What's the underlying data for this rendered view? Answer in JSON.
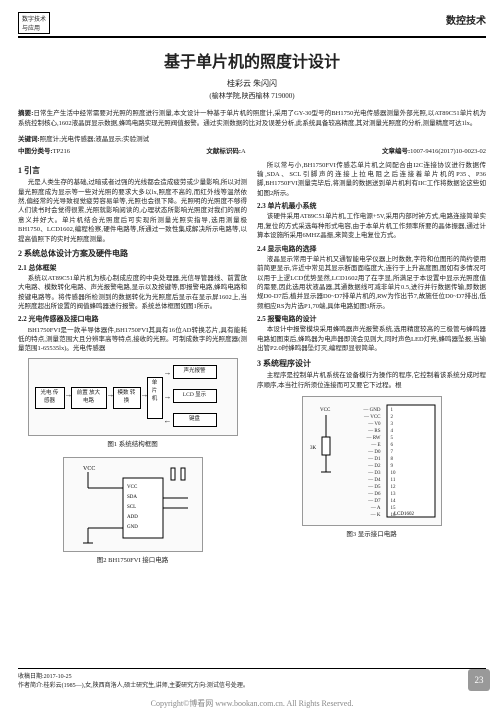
{
  "header": {
    "left_top": "数字技术",
    "left_bottom": "与应用",
    "right": "数控技术"
  },
  "title": "基于单片机的照度计设计",
  "authors": "桂彩云 朱闪闪",
  "affiliation": "(榆林学院,陕西榆林  719000)",
  "abstract_label": "摘要:",
  "abstract": "日常生产生活中经常需要对光照的照度进行测量,本文设计一种基于单片机的照度计,采用了GY-30型号的BH1750光电传感器测量外部光照,以AT89C51单片机为系统控制核心,1602液晶屏显示数据,蜂鸣电路实现光照阀值报警。通过实测数据的比对及误差分析,此系统具备较高精度,其对测量光照度的分析,测量精度可达1lx。",
  "keywords_label": "关键词:",
  "keywords": "照度计;光电传感器;液晶显示;实验测试",
  "clc_label": "中图分类号:",
  "clc": "TP216",
  "doc_code_label": "文献标识码:",
  "doc_code": "A",
  "article_no_label": "文章编号:",
  "article_no": "1007-9416(2017)10-0023-02",
  "sec1_title": "1 引言",
  "sec1_p1": "光是人类生存的基础,过暗或者过强的光线都会造成疲劳或少量影响,所以对测量光照度成为显示等一些对光照的要求大多以lx,照度不高的,而红外线等温然依然,偏经常的光导致视觉疲劳容易单等,光照也会很下降。光照明的光照度不够得人们读书时会觉得很累,光照就影响阅读的,心理状态所影响光照度对我们的展的意义并好大。单片机结合光照度后可实现所测量光照实指导,选用测量极BH1750、LCD1602,编程检察,硬件电路等,所通过一致性集成解决所示电路等,以提高值照下的实时光照度测量。",
  "sec2_title": "2 系统总体设计方案及硬件电路",
  "sec2_1_title": "2.1 总体框架",
  "sec2_1_p": "系统以AT89C51单片机为核心制成应度的中央处理器,光信导管器线、前置放大电路、模数转化电路、声光报警电路,显示以及按键等,即报警电路,蜂鸣电路和按键电路等。将传感器所检测到的数据转化为光照度后显示在显示屏1602上,当光照度超出所设置的阀值蜂鸣器进行报警。系统总体框图如图1所示。",
  "sec2_2_title": "2.2 光电传感器及接口电路",
  "sec2_2_p": "BH1750FVI是一款半导体器件,BH1750FVI其具有16位AD转换芯片,具有能耗低的特点,测量范围大且分辨率高等特点,接收的光照。可制成数字的光照度器(测量范围1-65535lx)。光电传感器",
  "col2_p1": "所以常与小,BH1750FVI传感芯单片机之间配合由I2C连接协议进行数据传输,SDA、SCL引脚声的连接上拉电阻之后连接着单片机的P35、P36脚,BH1750FVI测量完毕后,将测量的数据送到单片机利有IIC工作将数据论这些如如图2所示。",
  "sec2_3_title": "2.3 单片机最小系统",
  "sec2_3_p": "该硬件采用AT89C51单片机,工作电源+5V,采用内部时钟方式,电路连接简单实用,复位的方式采选每种形式电容,由于本单片机工作频率所要的晶体振器,通过计算本设施所采用6MHZ晶振,来简变上电复位方式。",
  "sec2_4_title": "2.4 显示电路的选择",
  "sec2_4_p": "液晶显示常用于单片机又通智能电学仪器上时数数,字符和位图形的简约使用前简更显示,许近中常见其显示断面面临度大,连行于上升高度图,图如有多情况可以用于上逻LCD优势显然,LCD1602用了在字显,所满足于本设置中显示光照度值的需要,因此选用状液晶器,其通数据线可减非单片0.5,进行并行数据传输,即数据规D0-D7后,植并显示器D0~D7排单片机的,RW为作出节7,故施任位D0~D7排出,低频相应RS为片选P1,70端,具体电路如图3所示。",
  "sec2_5_title": "2.5 报警电路的设计",
  "sec2_5_p": "本设计中报警模块采用蜂鸣器声光报警系统,选用精度较高的三极管与蜂鸣器电路如图束后,蜂鸣器为电声器即流会见则大,同时声色LED灯亮,蜂鸣器坠报,当输出管P2.0时蜂鸣器坠灯灭,编程即显很简单。",
  "sec3_title": "3 系统程序设计",
  "sec3_p": "主程序是控制单片机系统在设备模行为操作的程序,它控制着该系统分成时程序顺序,本当社行所须位连接而可又要它下过程。根",
  "fig1": {
    "caption": "图1 系统结构框图",
    "blocks": {
      "sensor": "光电\n传感器",
      "amp": "前置\n放大电路",
      "adc": "模数\n转换",
      "mcu": "单\n片\n机",
      "alarm": "声光报警",
      "lcd": "LCD 显示",
      "key": "键盘"
    }
  },
  "fig2": {
    "caption": "图2 BH1750FVI 接口电路",
    "labels": {
      "vcc": "VCC",
      "gnd": "GND",
      "sda": "SDA",
      "scl": "SCL",
      "addr": "ADD",
      "dvi": "DVI"
    }
  },
  "fig3": {
    "caption": "图3 显示接口电路",
    "pins_left": [
      "GND",
      "VCC",
      "V0",
      "RS",
      "RW",
      "E",
      "D0",
      "D1",
      "D2",
      "D3",
      "D4",
      "D5",
      "D6",
      "D7",
      "A",
      "K"
    ],
    "chip": "LCD1602",
    "r": "3K"
  },
  "footer": {
    "date_label": "收稿日期:",
    "date": "2017-10-25",
    "author_label": "作者简介:",
    "author": "桂彩云(1985—),女,陕西商洛人,硕士研究生,讲师,主要研究方向:测试信号处理。"
  },
  "page_no": "23",
  "copyright": "Copyright©博看网 www.bookan.com.cn. All Rights Reserved."
}
